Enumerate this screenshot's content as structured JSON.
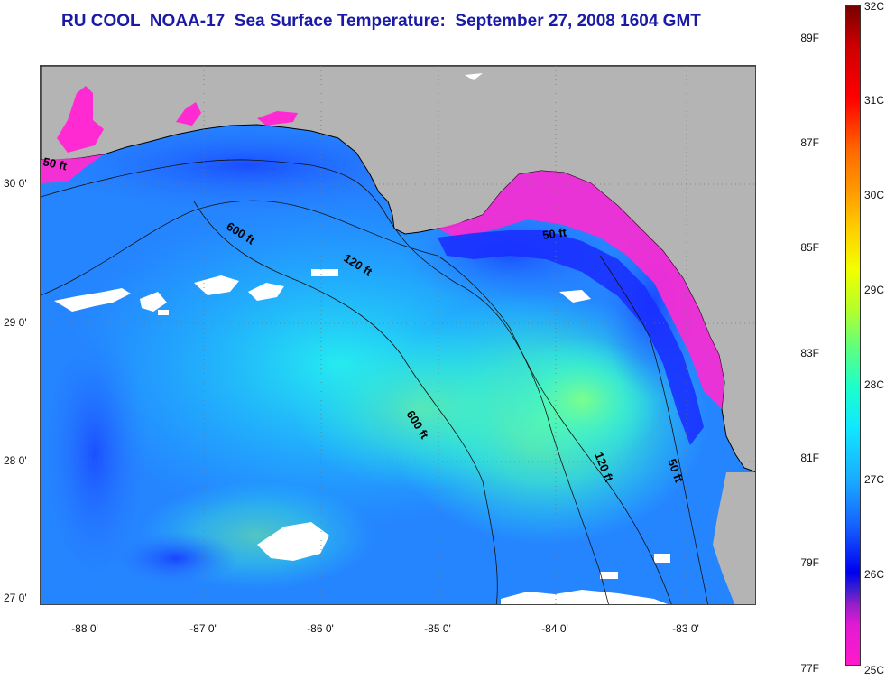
{
  "title": "RU COOL  NOAA-17  Sea Surface Temperature:  September 27, 2008 1604 GMT",
  "map": {
    "lat_labels": [
      "30 0'",
      "29 0'",
      "28 0'",
      "27 0'"
    ],
    "lon_labels": [
      "-88 0'",
      "-87 0'",
      "-86 0'",
      "-85 0'",
      "-84 0'",
      "-83 0'"
    ],
    "contour_labels": [
      "50 ft",
      "600 ft",
      "120 ft",
      "50 ft",
      "600 ft",
      "120 ft",
      "50 ft"
    ],
    "colors": {
      "land": "#b4b4b4",
      "cloud": "#ffffff",
      "water_deep": "#2a7cff",
      "water_warm": "#22e8f0",
      "coastal_cool": "#ff2ad2"
    }
  },
  "colorbar": {
    "celsius_labels": [
      "32C",
      "31C",
      "30C",
      "29C",
      "28C",
      "27C",
      "26C",
      "25C"
    ],
    "fahrenheit_labels": [
      "89F",
      "87F",
      "85F",
      "83F",
      "81F",
      "79F",
      "77F"
    ]
  }
}
